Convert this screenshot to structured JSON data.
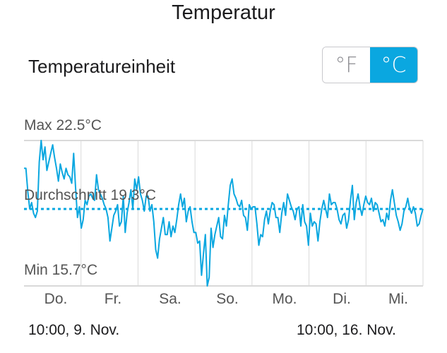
{
  "page": {
    "title": "Temperatur"
  },
  "unit_setting": {
    "label": "Temperatureinheit",
    "options": [
      {
        "label": "°F",
        "selected": false
      },
      {
        "label": "°C",
        "selected": true
      }
    ]
  },
  "colors": {
    "accent": "#0aa7e0",
    "line": "#0aa7e0",
    "grid": "#d9d9d9",
    "average": "#0aa7e0"
  },
  "chart_data": {
    "type": "line",
    "max_label": "Max 22.5°C",
    "avg_label": "Durchschnitt 19.3°C",
    "min_label": "Min 15.7°C",
    "ylim": [
      15.7,
      22.5
    ],
    "average": 19.3,
    "x_labels": [
      "Do.",
      "Fr.",
      "Sa.",
      "So.",
      "Mo.",
      "Di.",
      "Mi."
    ],
    "range_start": "10:00,  9. Nov.",
    "range_end": "10:00,  16. Nov.",
    "series": [
      {
        "values": [
          21.2,
          21.2,
          20.1,
          19.3,
          19.6,
          19.1,
          18.9,
          19.2,
          21.5,
          22.5,
          21.6,
          22.2,
          21.1,
          21.5,
          21.9,
          22.3,
          21.7,
          21.2,
          20.6,
          21.4,
          21.0,
          20.7,
          21.2,
          20.9,
          20.8,
          20.5,
          21.9,
          20.3,
          18.9,
          19.4,
          18.4,
          18.8,
          19.7,
          19.5,
          19.9,
          20.0,
          19.8,
          19.7,
          20.9,
          20.2,
          20.0,
          19.8,
          19.5,
          19.3,
          18.9,
          17.8,
          18.4,
          19.0,
          19.2,
          19.5,
          18.5,
          18.7,
          19.9,
          18.2,
          19.1,
          19.6,
          20.2,
          19.3,
          20.7,
          20.2,
          20.8,
          20.0,
          19.7,
          19.2,
          19.9,
          19.9,
          19.2,
          19.5,
          18.7,
          17.4,
          17.0,
          17.9,
          18.4,
          18.9,
          18.1,
          18.1,
          18.7,
          18.0,
          18.5,
          18.2,
          18.8,
          19.5,
          20.0,
          19.4,
          19.8,
          18.7,
          19.2,
          19.4,
          18.7,
          18.2,
          18.2,
          17.7,
          17.8,
          16.2,
          17.2,
          18.1,
          15.7,
          16.1,
          18.4,
          17.5,
          18.1,
          18.5,
          18.9,
          18.0,
          17.9,
          19.0,
          18.5,
          19.5,
          20.4,
          20.7,
          20.0,
          19.8,
          19.5,
          19.4,
          19.7,
          19.0,
          18.9,
          18.3,
          19.5,
          19.3,
          19.4,
          19.4,
          18.6,
          17.6,
          18.1,
          18.0,
          18.8,
          19.2,
          18.6,
          19.2,
          19.6,
          19.5,
          18.9,
          18.9,
          18.2,
          19.1,
          19.6,
          19.0,
          20.0,
          19.7,
          19.4,
          19.2,
          18.8,
          19.3,
          19.4,
          18.5,
          19.5,
          18.7,
          18.5,
          17.6,
          19.1,
          18.5,
          18.7,
          18.6,
          17.8,
          18.7,
          19.3,
          19.7,
          19.3,
          18.9,
          20.0,
          19.5,
          19.6,
          19.6,
          19.3,
          18.8,
          18.6,
          19.0,
          19.1,
          18.4,
          18.8,
          19.7,
          20.4,
          18.8,
          19.6,
          20.0,
          19.4,
          19.0,
          19.5,
          19.9,
          19.6,
          19.5,
          19.8,
          19.2,
          19.6,
          19.5,
          19.1,
          18.7,
          18.8,
          18.5,
          19.1,
          18.8,
          19.7,
          20.2,
          19.6,
          19.0,
          18.7,
          18.3,
          18.6,
          19.2,
          19.4,
          19.8,
          19.3,
          19.1,
          19.4,
          19.1,
          18.5,
          18.6,
          19.0,
          19.3
        ]
      }
    ]
  }
}
